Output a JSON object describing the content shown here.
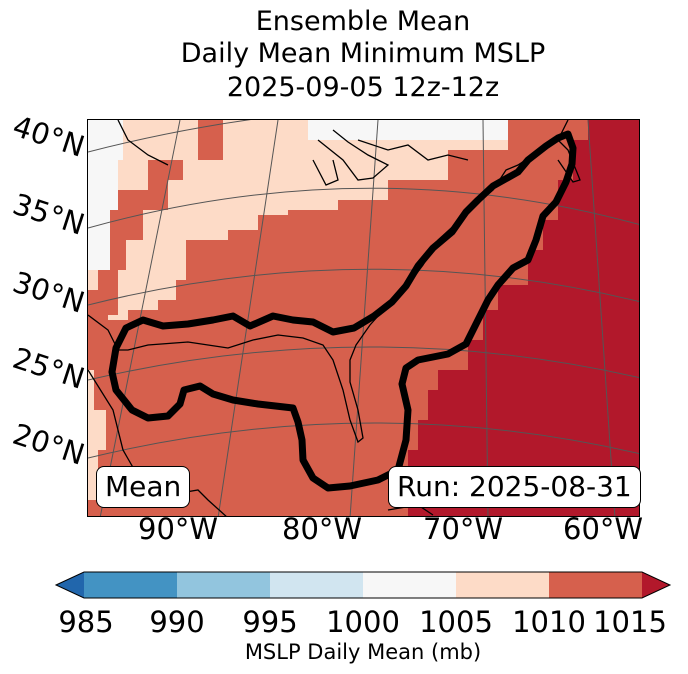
{
  "title": {
    "line1": "Ensemble Mean",
    "line2": "Daily Mean Minimum MSLP",
    "line3": "2025-09-05 12z-12z"
  },
  "map": {
    "lat_labels": [
      "40°N",
      "35°N",
      "30°N",
      "25°N",
      "20°N"
    ],
    "lon_labels": [
      "90°W",
      "80°W",
      "70°W",
      "60°W"
    ],
    "mean_tag": "Mean",
    "run_tag": "Run: 2025-08-31",
    "contour": "ensemble outline (black)"
  },
  "colorbar": {
    "ticks": [
      "985",
      "990",
      "995",
      "1000",
      "1005",
      "1010",
      "1015"
    ],
    "title": "MSLP Daily Mean (mb)",
    "bins": [
      {
        "range": "985-990",
        "color": "#4393c3"
      },
      {
        "range": "990-995",
        "color": "#92c5de"
      },
      {
        "range": "995-1000",
        "color": "#d1e5f0"
      },
      {
        "range": "1000-1005",
        "color": "#f7f7f7"
      },
      {
        "range": "1005-1010",
        "color": "#fddbc7"
      },
      {
        "range": "1010-1015",
        "color": "#d6604d"
      }
    ],
    "under_color": "#2166ac",
    "over_color": "#b2182b"
  }
}
